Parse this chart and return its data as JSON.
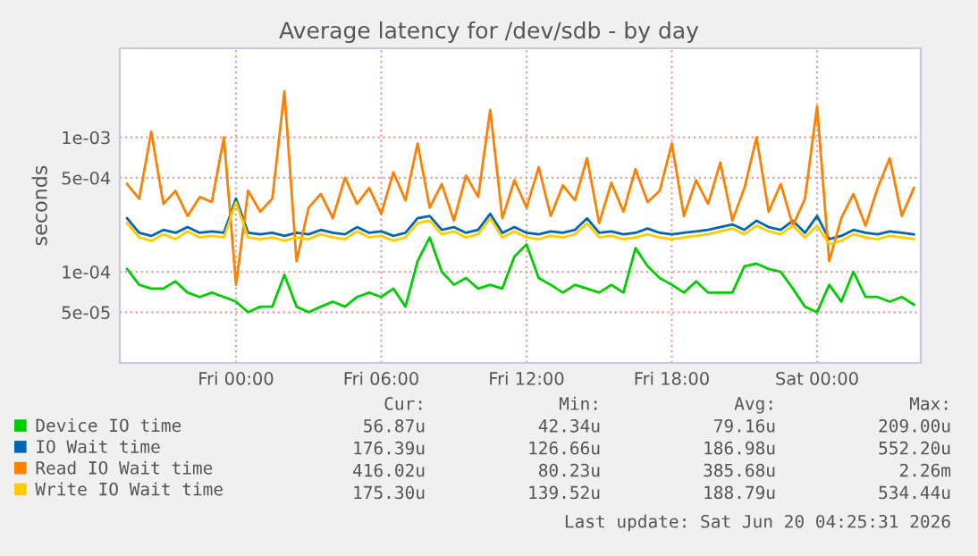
{
  "chart_data": {
    "type": "line",
    "title": "Average latency for /dev/sdb - by day",
    "ylabel": "seconds",
    "log": "y",
    "grid": true,
    "legend": "bottom",
    "x": [
      "2026-06-18T19:30",
      "2026-06-18T20:00",
      "2026-06-18T20:30",
      "2026-06-18T21:00",
      "2026-06-18T21:30",
      "2026-06-18T22:00",
      "2026-06-18T22:30",
      "2026-06-18T23:00",
      "2026-06-18T23:30",
      "2026-06-19T00:00",
      "2026-06-19T00:30",
      "2026-06-19T01:00",
      "2026-06-19T01:30",
      "2026-06-19T02:00",
      "2026-06-19T02:30",
      "2026-06-19T03:00",
      "2026-06-19T03:30",
      "2026-06-19T04:00",
      "2026-06-19T04:30",
      "2026-06-19T05:00",
      "2026-06-19T05:30",
      "2026-06-19T06:00",
      "2026-06-19T06:30",
      "2026-06-19T07:00",
      "2026-06-19T07:30",
      "2026-06-19T08:00",
      "2026-06-19T08:30",
      "2026-06-19T09:00",
      "2026-06-19T09:30",
      "2026-06-19T10:00",
      "2026-06-19T10:30",
      "2026-06-19T11:00",
      "2026-06-19T11:30",
      "2026-06-19T12:00",
      "2026-06-19T12:30",
      "2026-06-19T13:00",
      "2026-06-19T13:30",
      "2026-06-19T14:00",
      "2026-06-19T14:30",
      "2026-06-19T15:00",
      "2026-06-19T15:30",
      "2026-06-19T16:00",
      "2026-06-19T16:30",
      "2026-06-19T17:00",
      "2026-06-19T17:30",
      "2026-06-19T18:00",
      "2026-06-19T18:30",
      "2026-06-19T19:00",
      "2026-06-19T19:30",
      "2026-06-19T20:00",
      "2026-06-19T20:30",
      "2026-06-19T21:00",
      "2026-06-19T21:30",
      "2026-06-19T22:00",
      "2026-06-19T22:30",
      "2026-06-19T23:00",
      "2026-06-19T23:30",
      "2026-06-20T00:00",
      "2026-06-20T00:30",
      "2026-06-20T01:00",
      "2026-06-20T01:30",
      "2026-06-20T02:00",
      "2026-06-20T02:30",
      "2026-06-20T03:00",
      "2026-06-20T03:30",
      "2026-06-20T04:00"
    ],
    "xlim": [
      "2026-06-18T19:12",
      "2026-06-20T04:17"
    ],
    "xticks": [
      {
        "value": "2026-06-19T00:00",
        "label": "Fri 00:00"
      },
      {
        "value": "2026-06-19T06:00",
        "label": "Fri 06:00"
      },
      {
        "value": "2026-06-19T12:00",
        "label": "Fri 12:00"
      },
      {
        "value": "2026-06-19T18:00",
        "label": "Fri 18:00"
      },
      {
        "value": "2026-06-20T00:00",
        "label": "Sat 00:00"
      }
    ],
    "ylim": [
      2.1e-05,
      0.0046
    ],
    "yticks": [
      {
        "value": 5e-05,
        "label": "5e-05"
      },
      {
        "value": 0.0001,
        "label": "1e-04"
      },
      {
        "value": 0.0005,
        "label": "5e-04"
      },
      {
        "value": 0.001,
        "label": "1e-03"
      }
    ],
    "series": [
      {
        "name": "Device IO time",
        "color": "#00cc00",
        "values": [
          0.000105,
          8e-05,
          7.5e-05,
          7.5e-05,
          8.5e-05,
          7e-05,
          6.5e-05,
          7e-05,
          6.5e-05,
          6e-05,
          5e-05,
          5.5e-05,
          5.5e-05,
          9.5e-05,
          5.5e-05,
          5e-05,
          5.5e-05,
          6e-05,
          5.5e-05,
          6.5e-05,
          7e-05,
          6.5e-05,
          7.5e-05,
          5.5e-05,
          0.00012,
          0.00018,
          0.0001,
          8e-05,
          9e-05,
          7.5e-05,
          8e-05,
          7.5e-05,
          0.00013,
          0.00016,
          9e-05,
          8e-05,
          7e-05,
          8e-05,
          7.5e-05,
          7e-05,
          8e-05,
          7e-05,
          0.00015,
          0.00011,
          9e-05,
          8e-05,
          7e-05,
          8.5e-05,
          7e-05,
          7e-05,
          7e-05,
          0.00011,
          0.000115,
          0.000105,
          0.0001,
          7.5e-05,
          5.5e-05,
          5e-05,
          8e-05,
          6e-05,
          0.0001,
          6.5e-05,
          6.5e-05,
          6e-05,
          6.5e-05,
          5.7e-05
        ]
      },
      {
        "name": "IO Wait time",
        "color": "#0066b3",
        "values": [
          0.00025,
          0.000195,
          0.000185,
          0.000205,
          0.000195,
          0.000215,
          0.000195,
          0.0002,
          0.000195,
          0.00035,
          0.000195,
          0.00019,
          0.000195,
          0.000185,
          0.000195,
          0.00019,
          0.000205,
          0.000195,
          0.00019,
          0.000215,
          0.000195,
          0.0002,
          0.000185,
          0.000195,
          0.00025,
          0.00026,
          0.000205,
          0.000215,
          0.000195,
          0.000205,
          0.00027,
          0.000195,
          0.000215,
          0.000195,
          0.00019,
          0.0002,
          0.000195,
          0.000205,
          0.00025,
          0.000195,
          0.0002,
          0.00019,
          0.000195,
          0.00021,
          0.000195,
          0.00019,
          0.000195,
          0.0002,
          0.000205,
          0.000215,
          0.000225,
          0.000205,
          0.00024,
          0.000215,
          0.000205,
          0.00024,
          0.000195,
          0.00026,
          0.000175,
          0.000185,
          0.000205,
          0.000195,
          0.00019,
          0.0002,
          0.000195,
          0.00019
        ]
      },
      {
        "name": "Read IO Wait time",
        "color": "#ff8000",
        "values": [
          0.00045,
          0.00035,
          0.0011,
          0.00032,
          0.0004,
          0.00026,
          0.00036,
          0.00033,
          0.001,
          8e-05,
          0.0004,
          0.00028,
          0.00035,
          0.0022,
          0.00012,
          0.0003,
          0.00038,
          0.00025,
          0.0005,
          0.00032,
          0.00042,
          0.00027,
          0.00055,
          0.00034,
          0.0009,
          0.0003,
          0.00045,
          0.00024,
          0.00052,
          0.00036,
          0.0016,
          0.00025,
          0.00048,
          0.0003,
          0.0006,
          0.00026,
          0.00044,
          0.00034,
          0.0007,
          0.00023,
          0.00046,
          0.00028,
          0.00058,
          0.00033,
          0.0004,
          0.0009,
          0.00026,
          0.00048,
          0.00032,
          0.00065,
          0.00024,
          0.00042,
          0.001,
          0.00028,
          0.00045,
          0.00022,
          0.00035,
          0.0017,
          0.00012,
          0.00025,
          0.00038,
          0.00022,
          0.00042,
          0.0007,
          0.00026,
          0.00042
        ]
      },
      {
        "name": "Write IO Wait time",
        "color": "#ffcc00",
        "values": [
          0.00023,
          0.00018,
          0.00017,
          0.00019,
          0.000175,
          0.0002,
          0.00018,
          0.000185,
          0.00018,
          0.00033,
          0.00018,
          0.000175,
          0.00018,
          0.00017,
          0.00018,
          0.000175,
          0.00019,
          0.00018,
          0.000175,
          0.0002,
          0.00018,
          0.000185,
          0.00017,
          0.00018,
          0.00023,
          0.00024,
          0.00019,
          0.0002,
          0.00018,
          0.00019,
          0.00025,
          0.00018,
          0.0002,
          0.00018,
          0.000175,
          0.000185,
          0.00018,
          0.00019,
          0.00023,
          0.00018,
          0.000185,
          0.000175,
          0.00018,
          0.00019,
          0.00018,
          0.000175,
          0.00018,
          0.000185,
          0.00019,
          0.0002,
          0.00021,
          0.00019,
          0.00022,
          0.0002,
          0.00019,
          0.00022,
          0.00018,
          0.00022,
          0.00016,
          0.00017,
          0.00019,
          0.00018,
          0.000175,
          0.000185,
          0.00018,
          0.000175
        ]
      }
    ],
    "annotations": [
      "Cur:",
      "Min:",
      "Avg:",
      "Max:",
      "56.87u",
      "42.34u",
      "79.16u",
      "209.00u",
      "176.39u",
      "126.66u",
      "186.98u",
      "552.20u",
      "416.02u",
      "80.23u",
      "385.68u",
      "2.26m",
      "175.30u",
      "139.52u",
      "188.79u",
      "534.44u",
      "Last update: Sat Jun 20 04:25:31 2026"
    ]
  }
}
